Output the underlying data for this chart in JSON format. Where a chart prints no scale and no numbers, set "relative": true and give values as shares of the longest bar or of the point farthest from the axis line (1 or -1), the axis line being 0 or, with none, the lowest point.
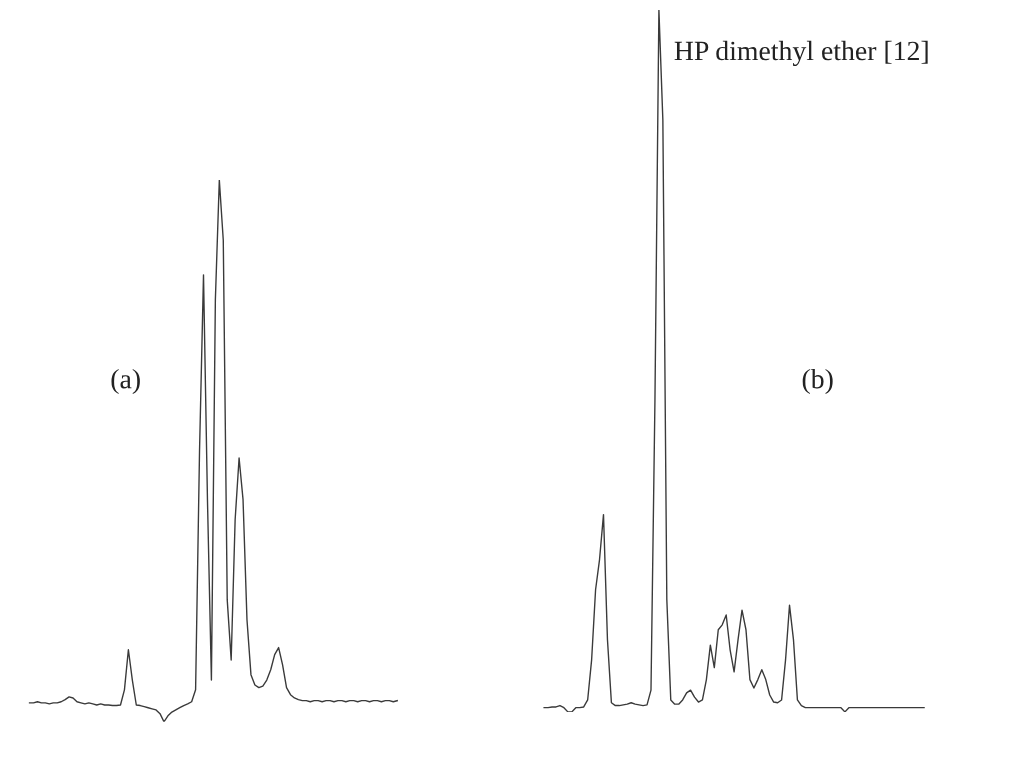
{
  "chart_data": [
    {
      "type": "line",
      "relative": true,
      "categories": [
        null,
        null,
        null,
        null,
        null,
        null,
        null,
        null,
        null,
        null,
        null,
        null,
        null,
        null,
        null,
        null,
        null,
        null,
        null,
        null,
        null,
        null,
        null,
        null,
        null,
        null,
        null,
        null,
        null,
        null,
        null,
        null,
        null,
        null,
        null,
        null,
        null,
        null,
        null,
        null,
        null,
        null,
        null,
        null,
        null,
        null,
        null,
        null,
        null,
        null,
        null,
        null,
        null,
        null,
        null,
        null,
        null,
        null,
        null,
        null,
        null,
        null,
        null,
        null,
        null,
        null,
        null,
        null,
        null,
        null,
        null,
        null,
        null,
        null,
        null,
        null,
        null,
        null,
        null,
        null,
        null,
        null,
        null,
        null,
        null,
        null,
        null,
        null,
        null,
        null,
        null,
        null,
        null,
        null
      ],
      "series": [
        {
          "color": "#3a3a3a",
          "values": [
            0.035,
            0.035,
            0.037,
            0.035,
            0.035,
            0.033,
            0.035,
            0.035,
            0.037,
            0.041,
            0.046,
            0.044,
            0.037,
            0.035,
            0.033,
            0.035,
            0.033,
            0.031,
            0.033,
            0.031,
            0.031,
            0.03,
            0.03,
            0.031,
            0.059,
            0.133,
            0.077,
            0.031,
            0.03,
            0.028,
            0.026,
            0.024,
            0.022,
            0.015,
            0,
            0.011,
            0.018,
            0.022,
            0.026,
            0.03,
            0.033,
            0.037,
            0.059,
            0.502,
            0.825,
            0.41,
            0.077,
            0.779,
            1,
            0.889,
            0.225,
            0.114,
            0.373,
            0.487,
            0.41,
            0.188,
            0.087,
            0.068,
            0.063,
            0.066,
            0.077,
            0.096,
            0.124,
            0.137,
            0.105,
            0.063,
            0.05,
            0.044,
            0.041,
            0.039,
            0.039,
            0.037,
            0.039,
            0.039,
            0.037,
            0.039,
            0.039,
            0.037,
            0.039,
            0.039,
            0.037,
            0.039,
            0.039,
            0.037,
            0.039,
            0.039,
            0.037,
            0.039,
            0.039,
            0.037,
            0.039,
            0.039,
            0.037,
            0.039
          ]
        }
      ],
      "annotations": [
        "(a)"
      ]
    },
    {
      "type": "line",
      "relative": true,
      "categories": [
        null,
        null,
        null,
        null,
        null,
        null,
        null,
        null,
        null,
        null,
        null,
        null,
        null,
        null,
        null,
        null,
        null,
        null,
        null,
        null,
        null,
        null,
        null,
        null,
        null,
        null,
        null,
        null,
        null,
        null,
        null,
        null,
        null,
        null,
        null,
        null,
        null,
        null,
        null,
        null,
        null,
        null,
        null,
        null,
        null,
        null,
        null,
        null,
        null,
        null,
        null,
        null,
        null,
        null,
        null,
        null,
        null,
        null,
        null,
        null,
        null,
        null,
        null,
        null,
        null,
        null,
        null,
        null,
        null,
        null,
        null,
        null,
        null,
        null,
        null,
        null,
        null,
        null,
        null,
        null,
        null,
        null,
        null,
        null,
        null,
        null,
        null,
        null,
        null,
        null,
        null,
        null,
        null,
        null,
        null,
        null,
        null
      ],
      "series": [
        {
          "color": "#3a3a3a",
          "values": [
            0.006,
            0.006,
            0.007,
            0.007,
            0.009,
            0.006,
            0,
            0,
            0.006,
            0.006,
            0.007,
            0.017,
            0.074,
            0.174,
            0.217,
            0.281,
            0.103,
            0.013,
            0.009,
            0.009,
            0.01,
            0.011,
            0.013,
            0.011,
            0.01,
            0.009,
            0.01,
            0.031,
            0.444,
            1,
            0.843,
            0.16,
            0.017,
            0.011,
            0.011,
            0.017,
            0.027,
            0.031,
            0.021,
            0.014,
            0.017,
            0.046,
            0.095,
            0.063,
            0.117,
            0.124,
            0.138,
            0.088,
            0.057,
            0.103,
            0.145,
            0.117,
            0.046,
            0.034,
            0.046,
            0.06,
            0.046,
            0.024,
            0.014,
            0.013,
            0.017,
            0.074,
            0.152,
            0.103,
            0.017,
            0.009,
            0.006,
            0.006,
            0.006,
            0.006,
            0.006,
            0.006,
            0.006,
            0.006,
            0.006,
            0.006,
            0,
            0.006,
            0.006,
            0.006,
            0.006,
            0.006,
            0.006,
            0.006,
            0.006,
            0.006,
            0.006,
            0.006,
            0.006,
            0.006,
            0.006,
            0.006,
            0.006,
            0.006,
            0.006,
            0.006,
            0.006
          ]
        }
      ],
      "annotations": [
        "(b)",
        "HP dimethyl ether [12]"
      ]
    }
  ]
}
